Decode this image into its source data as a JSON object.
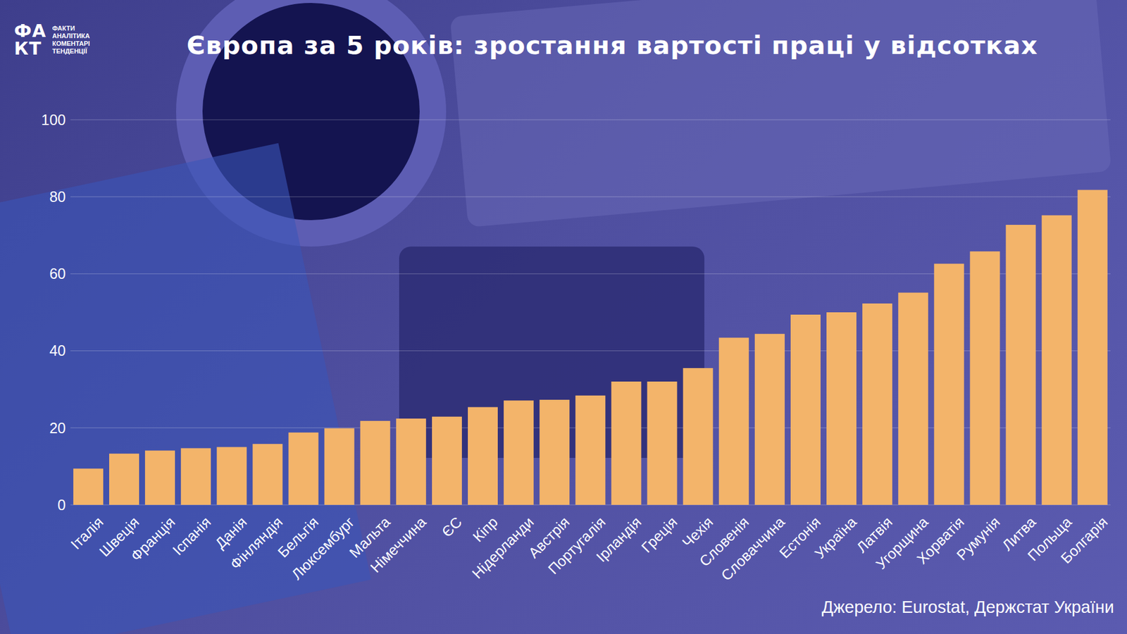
{
  "chart_data": {
    "type": "bar",
    "title": "Європа за 5 років: зростання вартості праці у відсотках",
    "source": "Джерело: Eurostat, Держстат України",
    "logo": {
      "mark": "ФАКТ",
      "lines": [
        "ФАКТИ",
        "АНАЛІТИКА",
        "КОМЕНТАРІ",
        "ТЕНДЕНЦІЇ"
      ]
    },
    "categories": [
      "Італія",
      "Швеція",
      "Франція",
      "Іспанія",
      "Данія",
      "Фінляндія",
      "Бельгія",
      "Люксембург",
      "Мальта",
      "Німеччина",
      "ЄС",
      "Кіпр",
      "Нідерланди",
      "Австрія",
      "Португалія",
      "Ірландія",
      "Греція",
      "Чехія",
      "Словенія",
      "Словаччина",
      "Естонія",
      "Україна",
      "Латвія",
      "Угорщина",
      "Хорватія",
      "Румунія",
      "Литва",
      "Польща",
      "Болгарія"
    ],
    "values": [
      9.4,
      13.3,
      14.1,
      14.7,
      15.0,
      15.8,
      18.8,
      19.9,
      21.8,
      22.4,
      22.9,
      25.4,
      27.1,
      27.3,
      28.4,
      32.0,
      32.0,
      35.5,
      43.4,
      44.4,
      49.4,
      50.0,
      52.3,
      55.1,
      62.6,
      65.8,
      72.7,
      75.2,
      81.8
    ],
    "color": "#f3b46a",
    "ylim": [
      0,
      100
    ],
    "yticks": [
      0,
      20,
      40,
      60,
      80,
      100
    ],
    "grid": true
  }
}
